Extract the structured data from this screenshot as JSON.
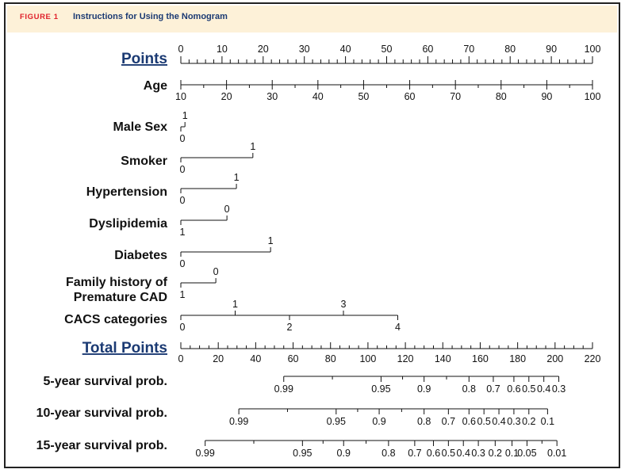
{
  "figure": {
    "label": "FIGURE 1",
    "title": "Instructions for Using the Nomogram"
  },
  "chart_data": {
    "type": "nomogram",
    "points_axis": {
      "label": "Points",
      "range": [
        0,
        100
      ],
      "tick_labels": [
        0,
        10,
        20,
        30,
        40,
        50,
        60,
        70,
        80,
        90,
        100
      ]
    },
    "variables": [
      {
        "label": "Age",
        "kind": "continuous",
        "values": [
          10,
          20,
          30,
          40,
          50,
          60,
          70,
          80,
          90,
          100
        ],
        "points": [
          0,
          11.1,
          22.2,
          33.3,
          44.4,
          55.6,
          66.7,
          77.8,
          88.9,
          100
        ]
      },
      {
        "label": "Male Sex",
        "kind": "categorical",
        "levels": [
          {
            "label": "0",
            "points": 0
          },
          {
            "label": "1",
            "points": 1
          }
        ]
      },
      {
        "label": "Smoker",
        "kind": "categorical",
        "levels": [
          {
            "label": "0",
            "points": 0
          },
          {
            "label": "1",
            "points": 17.5
          }
        ]
      },
      {
        "label": "Hypertension",
        "kind": "categorical",
        "levels": [
          {
            "label": "0",
            "points": 0
          },
          {
            "label": "1",
            "points": 13.5
          }
        ]
      },
      {
        "label": "Dyslipidemia",
        "kind": "categorical",
        "levels": [
          {
            "label": "1",
            "points": 0
          },
          {
            "label": "0",
            "points": 11.2
          }
        ]
      },
      {
        "label": "Diabetes",
        "kind": "categorical",
        "levels": [
          {
            "label": "0",
            "points": 0
          },
          {
            "label": "1",
            "points": 21.8
          }
        ]
      },
      {
        "label": "Family history of\nPremature CAD",
        "kind": "categorical",
        "levels": [
          {
            "label": "1",
            "points": 0
          },
          {
            "label": "0",
            "points": 8.5
          }
        ]
      },
      {
        "label": "CACS categories",
        "kind": "categorical",
        "levels": [
          {
            "label": "0",
            "points": 0
          },
          {
            "label": "1",
            "points": 13.2
          },
          {
            "label": "2",
            "points": 26.4
          },
          {
            "label": "3",
            "points": 39.5
          },
          {
            "label": "4",
            "points": 52.7
          }
        ]
      }
    ],
    "total_points_axis": {
      "label": "Total Points",
      "range": [
        0,
        220
      ],
      "tick_labels": [
        0,
        20,
        40,
        60,
        80,
        100,
        120,
        140,
        160,
        180,
        200,
        220
      ]
    },
    "survival_scales": [
      {
        "label": "5-year survival prob.",
        "ticks": [
          {
            "label": "0.99",
            "total_points": 55
          },
          {
            "label": "0.95",
            "total_points": 107
          },
          {
            "label": "0.9",
            "total_points": 130
          },
          {
            "label": "0.8",
            "total_points": 154
          },
          {
            "label": "0.7",
            "total_points": 167
          },
          {
            "label": "0.6",
            "total_points": 178
          },
          {
            "label": "0.5",
            "total_points": 186
          },
          {
            "label": "0.4",
            "total_points": 194
          },
          {
            "label": "0.3",
            "total_points": 202
          }
        ]
      },
      {
        "label": "10-year survival prob.",
        "ticks": [
          {
            "label": "0.99",
            "total_points": 31
          },
          {
            "label": "0.95",
            "total_points": 83
          },
          {
            "label": "0.9",
            "total_points": 106
          },
          {
            "label": "0.8",
            "total_points": 130
          },
          {
            "label": "0.7",
            "total_points": 143
          },
          {
            "label": "0.6",
            "total_points": 154
          },
          {
            "label": "0.5",
            "total_points": 162
          },
          {
            "label": "0.4",
            "total_points": 170
          },
          {
            "label": "0.3",
            "total_points": 178
          },
          {
            "label": "0.2",
            "total_points": 186
          },
          {
            "label": "0.1",
            "total_points": 196
          }
        ]
      },
      {
        "label": "15-year survival prob.",
        "ticks": [
          {
            "label": "0.99",
            "total_points": 13
          },
          {
            "label": "0.95",
            "total_points": 65
          },
          {
            "label": "0.9",
            "total_points": 87
          },
          {
            "label": "0.8",
            "total_points": 111
          },
          {
            "label": "0.7",
            "total_points": 125
          },
          {
            "label": "0.6",
            "total_points": 135
          },
          {
            "label": "0.5",
            "total_points": 143
          },
          {
            "label": "0.4",
            "total_points": 151
          },
          {
            "label": "0.3",
            "total_points": 159
          },
          {
            "label": "0.2",
            "total_points": 168
          },
          {
            "label": "0.1",
            "total_points": 177
          },
          {
            "label": "0.05",
            "total_points": 185
          },
          {
            "label": "0.01",
            "total_points": 201
          }
        ]
      }
    ],
    "colors": {
      "axis": "#111111",
      "title_blue": "#1b3a73",
      "header_bg": "#fdf1d8",
      "figure_label_red": "#e0202a"
    }
  }
}
